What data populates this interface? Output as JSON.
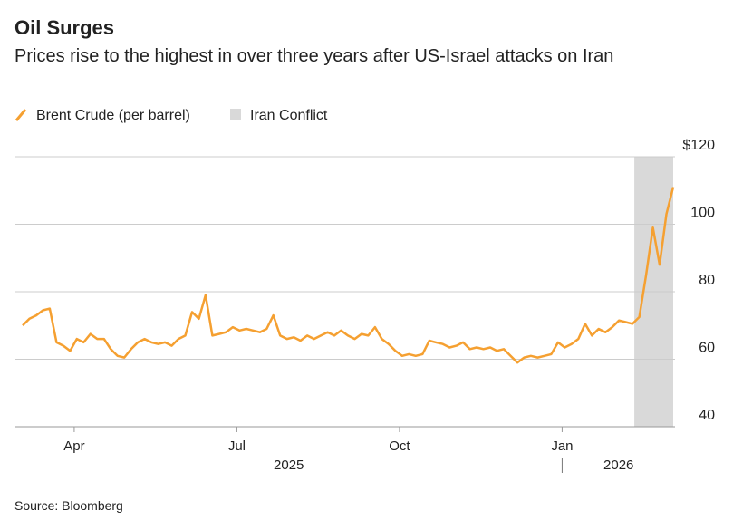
{
  "chart_data": {
    "type": "line",
    "title": "Oil Surges",
    "subtitle": "Prices rise to the highest in over three years after US-Israel attacks on Iran",
    "source": "Source: Bloomberg",
    "x": [
      "2025-03",
      "2025-03",
      "2025-03",
      "2025-03",
      "2025-04",
      "2025-04",
      "2025-04",
      "2025-04",
      "2025-04",
      "2025-04",
      "2025-04",
      "2025-04",
      "2025-05",
      "2025-05",
      "2025-05",
      "2025-05",
      "2025-05",
      "2025-05",
      "2025-05",
      "2025-05",
      "2025-06",
      "2025-06",
      "2025-06",
      "2025-06",
      "2025-06",
      "2025-06",
      "2025-06",
      "2025-06",
      "2025-07",
      "2025-07",
      "2025-07",
      "2025-07",
      "2025-07",
      "2025-07",
      "2025-07",
      "2025-07",
      "2025-08",
      "2025-08",
      "2025-08",
      "2025-08",
      "2025-08",
      "2025-08",
      "2025-08",
      "2025-08",
      "2025-09",
      "2025-09",
      "2025-09",
      "2025-09",
      "2025-09",
      "2025-09",
      "2025-09",
      "2025-09",
      "2025-10",
      "2025-10",
      "2025-10",
      "2025-10",
      "2025-10",
      "2025-10",
      "2025-10",
      "2025-10",
      "2025-11",
      "2025-11",
      "2025-11",
      "2025-11",
      "2025-11",
      "2025-11",
      "2025-11",
      "2025-11",
      "2025-12",
      "2025-12",
      "2025-12",
      "2025-12",
      "2025-12",
      "2025-12",
      "2025-12",
      "2025-12",
      "2026-01",
      "2026-01",
      "2026-01",
      "2026-01",
      "2026-01",
      "2026-01",
      "2026-01",
      "2026-01",
      "2026-02",
      "2026-02",
      "2026-02",
      "2026-02",
      "2026-02",
      "2026-02",
      "2026-02",
      "2026-02",
      "2026-03",
      "2026-03",
      "2026-03",
      "2026-03",
      "2026-03"
    ],
    "series": [
      {
        "name": "Brent Crude (per barrel)",
        "color": "#f5a031",
        "values": [
          70,
          72,
          73,
          74.5,
          75,
          65,
          64,
          62.5,
          66,
          65,
          67.5,
          66,
          66,
          63,
          61,
          60.5,
          63,
          65,
          66,
          65,
          64.5,
          65,
          64,
          66,
          67,
          74,
          72,
          79,
          67,
          67.5,
          68,
          69.5,
          68.5,
          69,
          68.5,
          68,
          69,
          73,
          67,
          66,
          66.5,
          65.5,
          67,
          66,
          67,
          68,
          67,
          68.5,
          67,
          66,
          67.5,
          67,
          69.5,
          66,
          64.5,
          62.5,
          61,
          61.5,
          61,
          61.5,
          65.5,
          65,
          64.5,
          63.5,
          64,
          65,
          63,
          63.5,
          63,
          63.5,
          62.5,
          63,
          61,
          59,
          60.5,
          61,
          60.5,
          61,
          61.5,
          65,
          63.5,
          64.5,
          66,
          70.5,
          67,
          69,
          68,
          69.5,
          71.5,
          71,
          70.5,
          72.5,
          85,
          99,
          88,
          103,
          111
        ]
      }
    ],
    "shade": {
      "name": "Iran Conflict",
      "color": "#d9d9d9",
      "from": "2026-03",
      "to": "2026-03"
    },
    "xticks": [
      {
        "value": "2025-04",
        "label": "Apr"
      },
      {
        "value": "2025-07",
        "label": "Jul"
      },
      {
        "value": "2025-10",
        "label": "Oct"
      },
      {
        "value": "2026-01",
        "label": "Jan"
      }
    ],
    "years": [
      {
        "value": "2025-03",
        "label": "2025"
      },
      {
        "value": "2026-01",
        "label": "2026"
      }
    ],
    "ylim": [
      40,
      120
    ],
    "yticks": [
      40,
      60,
      80,
      100,
      {
        "value": 120,
        "label": "$120"
      }
    ],
    "grid": true
  }
}
